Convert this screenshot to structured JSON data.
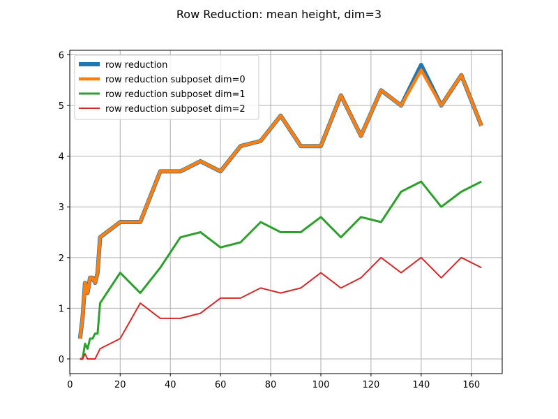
{
  "chart_data": {
    "type": "line",
    "title": "Row Reduction: mean height, dim=3",
    "xlabel": "",
    "ylabel": "",
    "xlim": [
      -0.1,
      172.3
    ],
    "ylim": [
      -0.29,
      6.09
    ],
    "xticks": [
      0,
      20,
      40,
      60,
      80,
      100,
      120,
      140,
      160
    ],
    "yticks": [
      0,
      1,
      2,
      3,
      4,
      5,
      6
    ],
    "grid": true,
    "legend_position": "top-left",
    "x": [
      4,
      5,
      6,
      7,
      8,
      9,
      10,
      11,
      12,
      20,
      28,
      36,
      44,
      52,
      60,
      68,
      76,
      84,
      92,
      100,
      108,
      116,
      124,
      132,
      140,
      148,
      156,
      164
    ],
    "series": [
      {
        "name": "row reduction",
        "color": "#1f77b4",
        "values": [
          0.4,
          0.8,
          1.5,
          1.3,
          1.6,
          1.6,
          1.5,
          1.7,
          2.4,
          2.7,
          2.7,
          3.7,
          3.7,
          3.9,
          3.7,
          4.2,
          4.3,
          4.8,
          4.2,
          4.2,
          5.2,
          4.4,
          5.3,
          5.0,
          5.8,
          5.0,
          5.6,
          4.6
        ]
      },
      {
        "name": "row reduction subposet dim=0",
        "color": "#ff7f0e",
        "values": [
          0.4,
          0.8,
          1.5,
          1.3,
          1.6,
          1.6,
          1.5,
          1.7,
          2.4,
          2.7,
          2.7,
          3.7,
          3.7,
          3.9,
          3.7,
          4.2,
          4.3,
          4.8,
          4.2,
          4.2,
          5.2,
          4.4,
          5.3,
          5.0,
          5.7,
          5.0,
          5.6,
          4.6
        ]
      },
      {
        "name": "row reduction subposet dim=1",
        "color": "#2ca02c",
        "values": [
          0.0,
          0.0,
          0.3,
          0.2,
          0.4,
          0.4,
          0.5,
          0.5,
          1.1,
          1.7,
          1.3,
          1.8,
          2.4,
          2.5,
          2.2,
          2.3,
          2.7,
          2.5,
          2.5,
          2.8,
          2.4,
          2.8,
          2.7,
          3.3,
          3.5,
          3.0,
          3.3,
          3.5
        ]
      },
      {
        "name": "row reduction subposet dim=2",
        "color": "#d62728",
        "values": [
          0.0,
          0.0,
          0.1,
          0.0,
          0.0,
          0.0,
          0.0,
          0.1,
          0.2,
          0.4,
          1.1,
          0.8,
          0.8,
          0.9,
          1.2,
          1.2,
          1.4,
          1.3,
          1.4,
          1.7,
          1.4,
          1.6,
          2.0,
          1.7,
          2.0,
          1.6,
          2.0,
          1.8
        ]
      }
    ]
  }
}
